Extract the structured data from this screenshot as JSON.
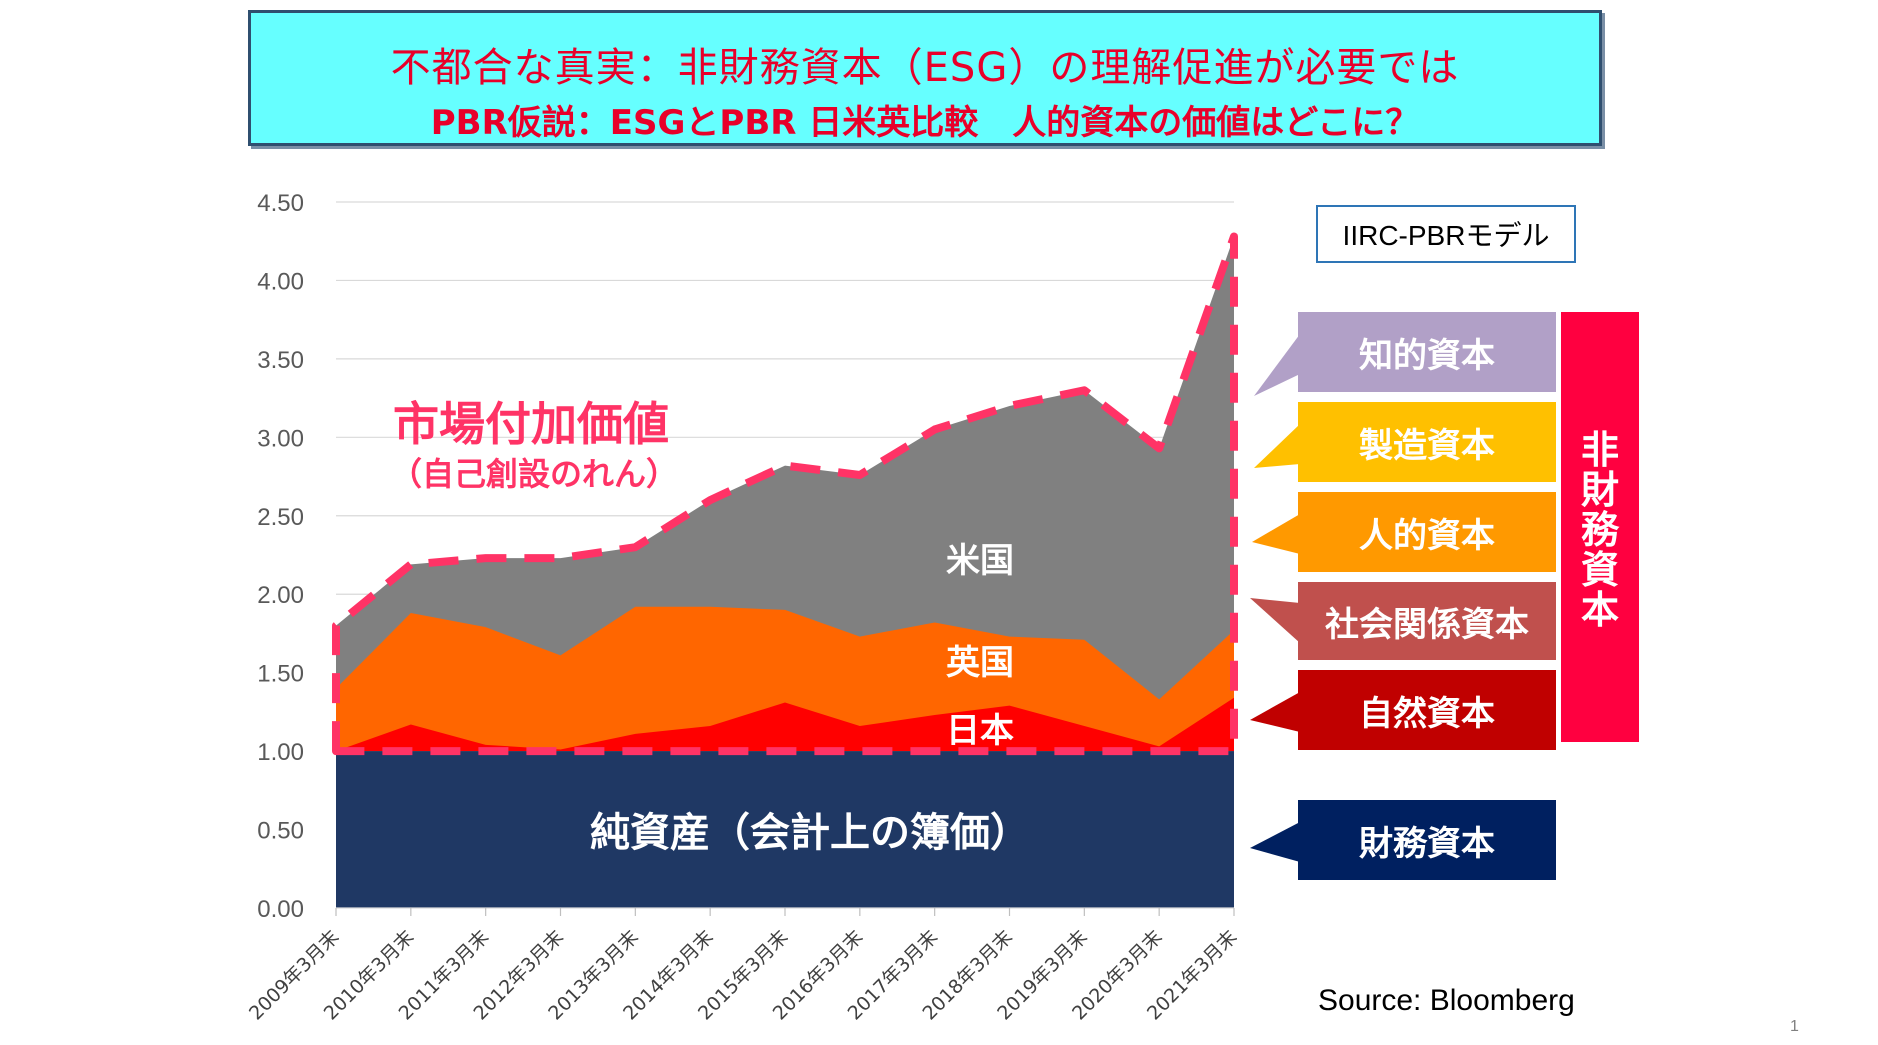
{
  "header": {
    "title_line1": "不都合な真実：非財務資本（ESG）の理解促進が必要では",
    "title_line2": "PBR仮説：ESGとPBR 日米英比較　人的資本の価値はどこに？"
  },
  "model_label": "IIRC-PBRモデル",
  "capital_labels": [
    {
      "label": "知的資本",
      "color": "#B1A0C7"
    },
    {
      "label": "製造資本",
      "color": "#FFC000"
    },
    {
      "label": "人的資本",
      "color": "#FF9900"
    },
    {
      "label": "社会関係資本",
      "color": "#C0504D"
    },
    {
      "label": "自然資本",
      "color": "#C00000"
    },
    {
      "label": "財務資本",
      "color": "#002060"
    }
  ],
  "non_financial_label": [
    "非",
    "財",
    "務",
    "資",
    "本"
  ],
  "non_financial_color": "#FF0040",
  "source": "Source: Bloomberg",
  "page_number": "1",
  "chart_data": {
    "type": "area",
    "title": "",
    "xlabel": "",
    "ylabel": "",
    "ylim": [
      0,
      4.5
    ],
    "yticks": [
      "0.00",
      "0.50",
      "1.00",
      "1.50",
      "2.00",
      "2.50",
      "3.00",
      "3.50",
      "4.00",
      "4.50"
    ],
    "grid": true,
    "categories": [
      "2009年3月末",
      "2010年3月末",
      "2011年3月末",
      "2012年3月末",
      "2013年3月末",
      "2014年3月末",
      "2015年3月末",
      "2016年3月末",
      "2017年3月末",
      "2018年3月末",
      "2019年3月末",
      "2020年3月末",
      "2021年3月末"
    ],
    "series": [
      {
        "name": "米国",
        "color": "#808080",
        "values": [
          1.8,
          2.19,
          2.23,
          2.23,
          2.3,
          2.6,
          2.82,
          2.76,
          3.05,
          3.2,
          3.3,
          2.93,
          4.28
        ]
      },
      {
        "name": "英国",
        "color": "#FF6600",
        "values": [
          1.4,
          1.88,
          1.79,
          1.61,
          1.92,
          1.92,
          1.9,
          1.73,
          1.82,
          1.73,
          1.71,
          1.33,
          1.77
        ]
      },
      {
        "name": "日本",
        "color": "#FF0000",
        "values": [
          1.0,
          1.17,
          1.04,
          1.01,
          1.11,
          1.16,
          1.31,
          1.16,
          1.23,
          1.29,
          1.16,
          1.03,
          1.34
        ]
      }
    ],
    "baseline": {
      "name": "純資産（会計上の簿価）",
      "value": 1.0,
      "color": "#1F3864"
    },
    "annotations": {
      "market_value": "市場付加価値",
      "market_value_sub": "（自己創設のれん）",
      "dashed_outline_color": "#FF3366"
    }
  }
}
